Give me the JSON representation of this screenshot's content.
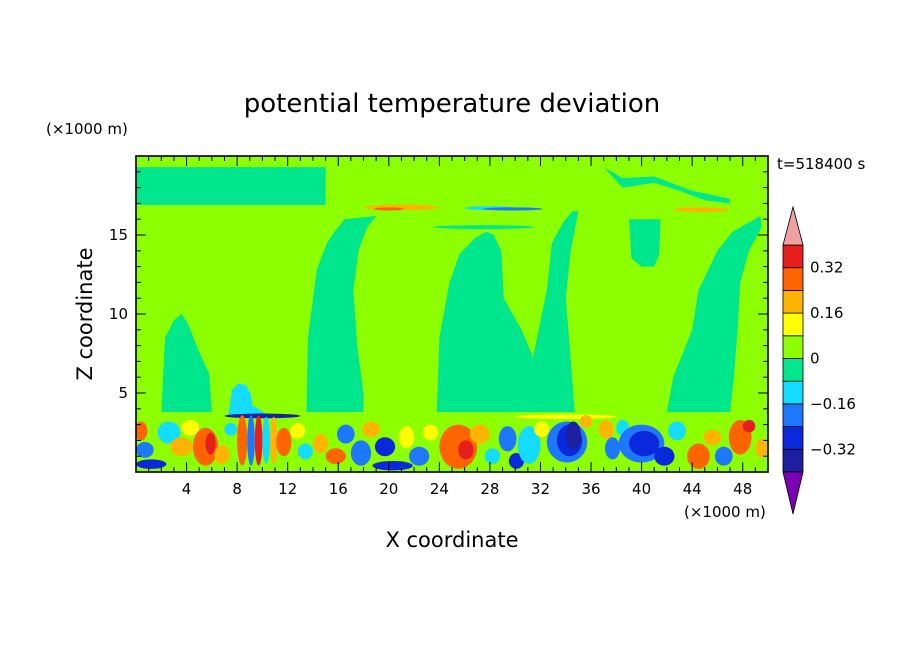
{
  "chart_data": {
    "type": "heatmap",
    "title": "potential temperature deviation",
    "xlabel": "X coordinate",
    "ylabel": "Z coordinate",
    "x_unit": "(×1000 m)",
    "y_unit": "(×1000 m)",
    "time_label": "t=518400 s",
    "xlim": [
      0,
      50
    ],
    "ylim": [
      0,
      20
    ],
    "x_ticks": [
      4,
      8,
      12,
      16,
      20,
      24,
      28,
      32,
      36,
      40,
      44,
      48
    ],
    "y_ticks": [
      5,
      10,
      15
    ],
    "colorbar": {
      "levels": [
        -0.4,
        -0.32,
        -0.24,
        -0.16,
        -0.08,
        0,
        0.08,
        0.16,
        0.24,
        0.32,
        0.4
      ],
      "colors": [
        "#7b00b4",
        "#1e1ea0",
        "#0a28dc",
        "#1e78ff",
        "#14dcff",
        "#00e68c",
        "#8cff00",
        "#ffff00",
        "#ffb400",
        "#ff6400",
        "#e61e1e",
        "#f0a0a0"
      ],
      "tick_values": [
        0.32,
        0.16,
        0,
        -0.16,
        -0.32
      ],
      "tick_labels": [
        "0.32",
        "0.16",
        "0",
        "−0.16",
        "−0.32"
      ],
      "extend": "both"
    },
    "background_value": 0.04,
    "regions": [
      {
        "kind": "poly",
        "v": -0.04,
        "pts": [
          [
            0,
            19.3
          ],
          [
            0,
            16.9
          ],
          [
            15,
            16.9
          ],
          [
            15,
            19.3
          ]
        ]
      },
      {
        "kind": "poly",
        "v": -0.04,
        "pts": [
          [
            2,
            3.8
          ],
          [
            2.3,
            8.5
          ],
          [
            3,
            9.6
          ],
          [
            3.6,
            10
          ],
          [
            4.1,
            9.4
          ],
          [
            5,
            7.6
          ],
          [
            5.8,
            6.2
          ],
          [
            6,
            3.8
          ]
        ]
      },
      {
        "kind": "poly",
        "v": -0.04,
        "pts": [
          [
            13.5,
            3.8
          ],
          [
            13.6,
            8.5
          ],
          [
            14.3,
            12.8
          ],
          [
            15.1,
            14.5
          ],
          [
            15.7,
            15.2
          ],
          [
            16.5,
            16
          ],
          [
            19,
            16.2
          ],
          [
            18.3,
            15.5
          ],
          [
            17.6,
            14
          ],
          [
            17.2,
            11.5
          ],
          [
            17.5,
            8
          ],
          [
            18,
            5
          ],
          [
            18,
            3.8
          ]
        ]
      },
      {
        "kind": "poly",
        "v": -0.04,
        "pts": [
          [
            23.8,
            3.8
          ],
          [
            24,
            8.5
          ],
          [
            24.8,
            12
          ],
          [
            25.6,
            13.8
          ],
          [
            26.8,
            14.8
          ],
          [
            27.7,
            15.2
          ],
          [
            28.3,
            15
          ],
          [
            28.9,
            14
          ],
          [
            29.1,
            11
          ],
          [
            30.5,
            9
          ],
          [
            31.3,
            7.5
          ],
          [
            31.8,
            5
          ],
          [
            31.5,
            3.8
          ]
        ]
      },
      {
        "kind": "poly",
        "v": -0.04,
        "pts": [
          [
            30.5,
            3.8
          ],
          [
            31,
            6
          ],
          [
            31.6,
            8
          ],
          [
            32.5,
            11.5
          ],
          [
            32.9,
            14.5
          ],
          [
            33.8,
            15.8
          ],
          [
            34.5,
            16.5
          ],
          [
            35,
            16.5
          ],
          [
            34.4,
            14
          ],
          [
            34,
            11
          ],
          [
            34.3,
            8
          ],
          [
            34.6,
            5
          ],
          [
            34.7,
            3.8
          ]
        ]
      },
      {
        "kind": "poly",
        "v": -0.04,
        "pts": [
          [
            42,
            3.8
          ],
          [
            42.5,
            6
          ],
          [
            44,
            9
          ],
          [
            44.5,
            11.5
          ],
          [
            46,
            14
          ],
          [
            47.2,
            15.2
          ],
          [
            49.4,
            16.2
          ],
          [
            49.5,
            15.5
          ],
          [
            48.5,
            14
          ],
          [
            47.8,
            12
          ],
          [
            47.6,
            9
          ],
          [
            47.3,
            6
          ],
          [
            47,
            3.8
          ]
        ]
      },
      {
        "kind": "poly",
        "v": -0.04,
        "pts": [
          [
            39,
            16
          ],
          [
            39.2,
            13.5
          ],
          [
            40,
            13
          ],
          [
            41,
            13
          ],
          [
            41.4,
            13.8
          ],
          [
            41.5,
            16
          ]
        ]
      },
      {
        "kind": "poly",
        "v": -0.04,
        "pts": [
          [
            35,
            19.6
          ],
          [
            37,
            19.3
          ],
          [
            38.5,
            18
          ],
          [
            41,
            18.3
          ],
          [
            43,
            17.8
          ],
          [
            45,
            17.2
          ],
          [
            47,
            17
          ],
          [
            47,
            17.3
          ],
          [
            44,
            17.8
          ],
          [
            41,
            18.7
          ],
          [
            38.5,
            18.6
          ],
          [
            37,
            19.3
          ]
        ]
      },
      {
        "kind": "poly",
        "v": -0.12,
        "pts": [
          [
            7.3,
            3.6
          ],
          [
            7.6,
            5.2
          ],
          [
            8.1,
            5.6
          ],
          [
            8.7,
            5.5
          ],
          [
            9.1,
            4.9
          ],
          [
            9.2,
            4.2
          ],
          [
            10.5,
            3.6
          ]
        ]
      },
      {
        "kind": "ell",
        "v": 0.2,
        "x": 21,
        "y": 16.75,
        "rx": 3,
        "ry": 0.18
      },
      {
        "kind": "ell",
        "v": 0.3,
        "x": 20,
        "y": 16.65,
        "rx": 1.2,
        "ry": 0.1
      },
      {
        "kind": "ell",
        "v": -0.12,
        "x": 28,
        "y": 16.7,
        "rx": 2,
        "ry": 0.12
      },
      {
        "kind": "ell",
        "v": -0.2,
        "x": 29.8,
        "y": 16.65,
        "rx": 2.4,
        "ry": 0.1
      },
      {
        "kind": "ell",
        "v": 0.2,
        "x": 44.7,
        "y": 16.6,
        "rx": 2.2,
        "ry": 0.15
      },
      {
        "kind": "ell",
        "v": -0.06,
        "x": 27.5,
        "y": 15.5,
        "rx": 4,
        "ry": 0.12
      },
      {
        "kind": "ell",
        "v": -0.35,
        "x": 10,
        "y": 3.55,
        "rx": 3,
        "ry": 0.15
      },
      {
        "kind": "ell",
        "v": 0.12,
        "x": 34,
        "y": 3.5,
        "rx": 4,
        "ry": 0.15
      }
    ],
    "blobs": [
      {
        "x": 0.4,
        "y": 2.6,
        "rx": 0.5,
        "ry": 0.6,
        "v": 0.3
      },
      {
        "x": 0.7,
        "y": 1.4,
        "rx": 0.7,
        "ry": 0.5,
        "v": -0.2
      },
      {
        "x": 1.2,
        "y": 0.5,
        "rx": 1.2,
        "ry": 0.3,
        "v": -0.3
      },
      {
        "x": 2.6,
        "y": 2.5,
        "rx": 0.9,
        "ry": 0.7,
        "v": -0.16
      },
      {
        "x": 3.6,
        "y": 1.6,
        "rx": 0.9,
        "ry": 0.6,
        "v": 0.2
      },
      {
        "x": 4.3,
        "y": 2.8,
        "rx": 0.7,
        "ry": 0.5,
        "v": 0.15
      },
      {
        "x": 5.5,
        "y": 1.6,
        "rx": 1.0,
        "ry": 1.2,
        "v": 0.3
      },
      {
        "x": 5.9,
        "y": 1.8,
        "rx": 0.4,
        "ry": 0.7,
        "v": 0.35
      },
      {
        "x": 6.8,
        "y": 1.1,
        "rx": 0.6,
        "ry": 0.6,
        "v": 0.16
      },
      {
        "x": 7.5,
        "y": 2.7,
        "rx": 0.5,
        "ry": 0.4,
        "v": -0.14
      },
      {
        "x": 8.4,
        "y": 2.0,
        "rx": 0.4,
        "ry": 1.6,
        "v": 0.3
      },
      {
        "x": 9.1,
        "y": 2.0,
        "rx": 0.3,
        "ry": 1.6,
        "v": -0.2
      },
      {
        "x": 9.7,
        "y": 2.0,
        "rx": 0.3,
        "ry": 1.6,
        "v": 0.35
      },
      {
        "x": 10.3,
        "y": 2.0,
        "rx": 0.3,
        "ry": 1.5,
        "v": -0.15
      },
      {
        "x": 10.9,
        "y": 2.0,
        "rx": 0.3,
        "ry": 1.5,
        "v": 0.22
      },
      {
        "x": 11.7,
        "y": 1.9,
        "rx": 0.6,
        "ry": 0.9,
        "v": 0.3
      },
      {
        "x": 12.8,
        "y": 2.6,
        "rx": 0.6,
        "ry": 0.5,
        "v": 0.14
      },
      {
        "x": 13.4,
        "y": 1.3,
        "rx": 0.6,
        "ry": 0.5,
        "v": -0.16
      },
      {
        "x": 14.6,
        "y": 1.8,
        "rx": 0.6,
        "ry": 0.6,
        "v": 0.18
      },
      {
        "x": 15.8,
        "y": 1.0,
        "rx": 0.8,
        "ry": 0.5,
        "v": 0.3
      },
      {
        "x": 16.6,
        "y": 2.4,
        "rx": 0.7,
        "ry": 0.6,
        "v": -0.18
      },
      {
        "x": 17.8,
        "y": 1.2,
        "rx": 0.8,
        "ry": 0.8,
        "v": -0.2
      },
      {
        "x": 18.6,
        "y": 2.7,
        "rx": 0.7,
        "ry": 0.5,
        "v": 0.2
      },
      {
        "x": 19.7,
        "y": 1.6,
        "rx": 0.8,
        "ry": 0.6,
        "v": -0.3
      },
      {
        "x": 20.3,
        "y": 0.4,
        "rx": 1.6,
        "ry": 0.3,
        "v": -0.3
      },
      {
        "x": 21.4,
        "y": 2.2,
        "rx": 0.6,
        "ry": 0.7,
        "v": 0.14
      },
      {
        "x": 22.4,
        "y": 1.0,
        "rx": 0.8,
        "ry": 0.6,
        "v": -0.22
      },
      {
        "x": 23.3,
        "y": 2.5,
        "rx": 0.6,
        "ry": 0.5,
        "v": 0.12
      },
      {
        "x": 25.5,
        "y": 1.6,
        "rx": 1.5,
        "ry": 1.4,
        "v": 0.3
      },
      {
        "x": 26.1,
        "y": 1.4,
        "rx": 0.6,
        "ry": 0.6,
        "v": 0.35
      },
      {
        "x": 27.2,
        "y": 2.4,
        "rx": 0.8,
        "ry": 0.6,
        "v": 0.16
      },
      {
        "x": 28.2,
        "y": 1.0,
        "rx": 0.6,
        "ry": 0.5,
        "v": -0.12
      },
      {
        "x": 29.4,
        "y": 2.1,
        "rx": 0.7,
        "ry": 0.8,
        "v": -0.2
      },
      {
        "x": 30.1,
        "y": 0.7,
        "rx": 0.6,
        "ry": 0.5,
        "v": -0.3
      },
      {
        "x": 31.1,
        "y": 1.7,
        "rx": 0.9,
        "ry": 1.2,
        "v": -0.16
      },
      {
        "x": 32.1,
        "y": 2.7,
        "rx": 0.6,
        "ry": 0.5,
        "v": 0.12
      },
      {
        "x": 34.1,
        "y": 1.9,
        "rx": 1.6,
        "ry": 1.3,
        "v": -0.2
      },
      {
        "x": 34.3,
        "y": 2.0,
        "rx": 1.0,
        "ry": 1.0,
        "v": -0.3
      },
      {
        "x": 34.6,
        "y": 2.3,
        "rx": 0.6,
        "ry": 0.9,
        "v": -0.38
      },
      {
        "x": 35.6,
        "y": 3.2,
        "rx": 0.5,
        "ry": 0.4,
        "v": 0.16
      },
      {
        "x": 37.2,
        "y": 2.7,
        "rx": 0.6,
        "ry": 0.6,
        "v": 0.2
      },
      {
        "x": 37.7,
        "y": 1.5,
        "rx": 0.6,
        "ry": 0.7,
        "v": -0.2
      },
      {
        "x": 38.5,
        "y": 2.8,
        "rx": 0.5,
        "ry": 0.5,
        "v": -0.16
      },
      {
        "x": 40.0,
        "y": 1.8,
        "rx": 1.8,
        "ry": 1.2,
        "v": -0.2
      },
      {
        "x": 40.2,
        "y": 1.8,
        "rx": 1.2,
        "ry": 0.8,
        "v": -0.32
      },
      {
        "x": 41.8,
        "y": 1.0,
        "rx": 0.8,
        "ry": 0.6,
        "v": -0.3
      },
      {
        "x": 42.8,
        "y": 2.6,
        "rx": 0.7,
        "ry": 0.6,
        "v": -0.16
      },
      {
        "x": 44.5,
        "y": 1.0,
        "rx": 0.9,
        "ry": 0.8,
        "v": 0.3
      },
      {
        "x": 45.6,
        "y": 2.2,
        "rx": 0.7,
        "ry": 0.5,
        "v": 0.16
      },
      {
        "x": 46.5,
        "y": 1.0,
        "rx": 0.7,
        "ry": 0.6,
        "v": -0.2
      },
      {
        "x": 47.8,
        "y": 2.2,
        "rx": 0.9,
        "ry": 1.1,
        "v": 0.3
      },
      {
        "x": 48.5,
        "y": 2.9,
        "rx": 0.5,
        "ry": 0.4,
        "v": 0.35
      },
      {
        "x": 49.5,
        "y": 1.5,
        "rx": 0.5,
        "ry": 0.6,
        "v": 0.16
      }
    ]
  }
}
